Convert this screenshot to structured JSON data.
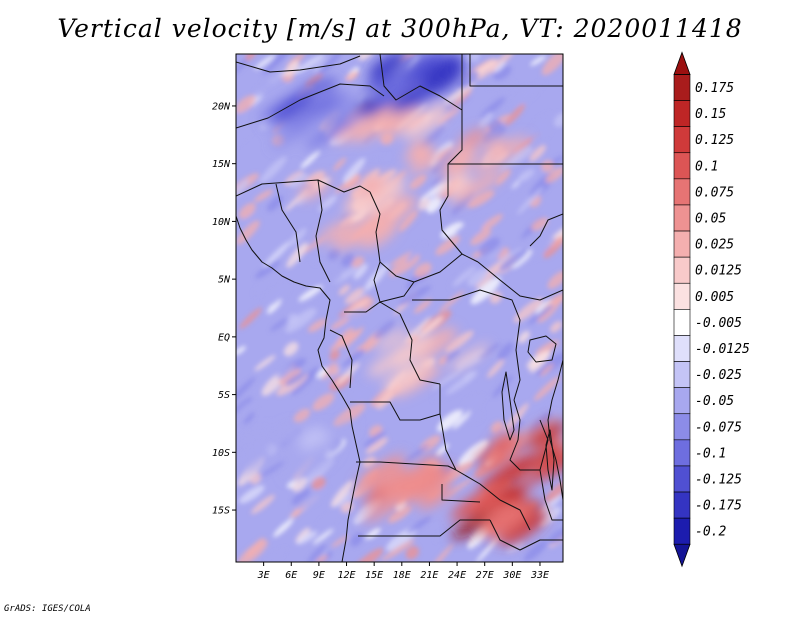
{
  "title": "Vertical velocity [m/s] at 300hPa, VT: 2020011418",
  "credit": "GrADS: IGES/COLA",
  "map": {
    "projection": "latlon",
    "lon_range": [
      0,
      35.5
    ],
    "lat_range": [
      -19.5,
      24.5
    ],
    "lon_ticks": [
      {
        "lon": 3,
        "label": "3E"
      },
      {
        "lon": 6,
        "label": "6E"
      },
      {
        "lon": 9,
        "label": "9E"
      },
      {
        "lon": 12,
        "label": "12E"
      },
      {
        "lon": 15,
        "label": "15E"
      },
      {
        "lon": 18,
        "label": "18E"
      },
      {
        "lon": 21,
        "label": "21E"
      },
      {
        "lon": 24,
        "label": "24E"
      },
      {
        "lon": 27,
        "label": "27E"
      },
      {
        "lon": 30,
        "label": "30E"
      },
      {
        "lon": 33,
        "label": "33E"
      }
    ],
    "lat_ticks": [
      {
        "lat": 20,
        "label": "20N"
      },
      {
        "lat": 15,
        "label": "15N"
      },
      {
        "lat": 10,
        "label": "10N"
      },
      {
        "lat": 5,
        "label": "5N"
      },
      {
        "lat": 0,
        "label": "EQ"
      },
      {
        "lat": -5,
        "label": "5S"
      },
      {
        "lat": -10,
        "label": "10S"
      },
      {
        "lat": -15,
        "label": "15S"
      }
    ],
    "field": {
      "variable": "vertical_velocity",
      "units": "m/s",
      "level": "300hPa",
      "background": "weak sinking (light blue) over most of the domain",
      "features": [
        {
          "sign": "rising",
          "desc": "SW–NE streak over Sahel",
          "lon": 17,
          "lat": 17,
          "strength": 0.05
        },
        {
          "sign": "rising",
          "desc": "band over Sudan",
          "lon": 27,
          "lat": 15,
          "strength": 0.05
        },
        {
          "sign": "rising",
          "desc": "streak near Niger-Chad",
          "lon": 12,
          "lat": 11,
          "strength": 0.04
        },
        {
          "sign": "sinking",
          "desc": "cell over Libya",
          "lon": 19,
          "lat": 22,
          "strength": -0.15
        },
        {
          "sign": "sinking",
          "desc": "cell over Niger",
          "lon": 8,
          "lat": 19,
          "strength": -0.12
        },
        {
          "sign": "rising",
          "desc": "band over southern Angola",
          "lon": 18,
          "lat": -13,
          "strength": 0.1
        },
        {
          "sign": "rising",
          "desc": "convection over Zambia/Mozambique",
          "lon": 28,
          "lat": -15,
          "strength": 0.17
        },
        {
          "sign": "rising",
          "desc": "convection over Malawi/Tanzania",
          "lon": 32,
          "lat": -10,
          "strength": 0.15
        },
        {
          "sign": "rising",
          "desc": "patches over Congo basin",
          "lon": 21,
          "lat": -2,
          "strength": 0.03
        },
        {
          "sign": "sinking",
          "desc": "area over South Atlantic",
          "lon": 6,
          "lat": -10,
          "strength": -0.04
        }
      ]
    }
  },
  "colorbar": {
    "levels": [
      {
        "label": "0.175",
        "color": "#a91c1c"
      },
      {
        "label": "0.15",
        "color": "#be2626"
      },
      {
        "label": "0.125",
        "color": "#cf3a3a"
      },
      {
        "label": "0.1",
        "color": "#dc5555"
      },
      {
        "label": "0.075",
        "color": "#e67474"
      },
      {
        "label": "0.05",
        "color": "#ee9292"
      },
      {
        "label": "0.025",
        "color": "#f4afaf"
      },
      {
        "label": "0.0125",
        "color": "#f8caca"
      },
      {
        "label": "0.005",
        "color": "#fbe1e1"
      },
      {
        "label": "-0.005",
        "color": "#ffffff"
      },
      {
        "label": "-0.0125",
        "color": "#dfdffb"
      },
      {
        "label": "-0.025",
        "color": "#c4c4f6"
      },
      {
        "label": "-0.05",
        "color": "#a8a8ef"
      },
      {
        "label": "-0.075",
        "color": "#8c8ce8"
      },
      {
        "label": "-0.1",
        "color": "#6e6edf"
      },
      {
        "label": "-0.125",
        "color": "#5050d2"
      },
      {
        "label": "-0.175",
        "color": "#3434c2"
      },
      {
        "label": "-0.2",
        "color": "#1c1cae"
      }
    ],
    "top_color": "#9b1010",
    "bottom_color": "#141496"
  }
}
